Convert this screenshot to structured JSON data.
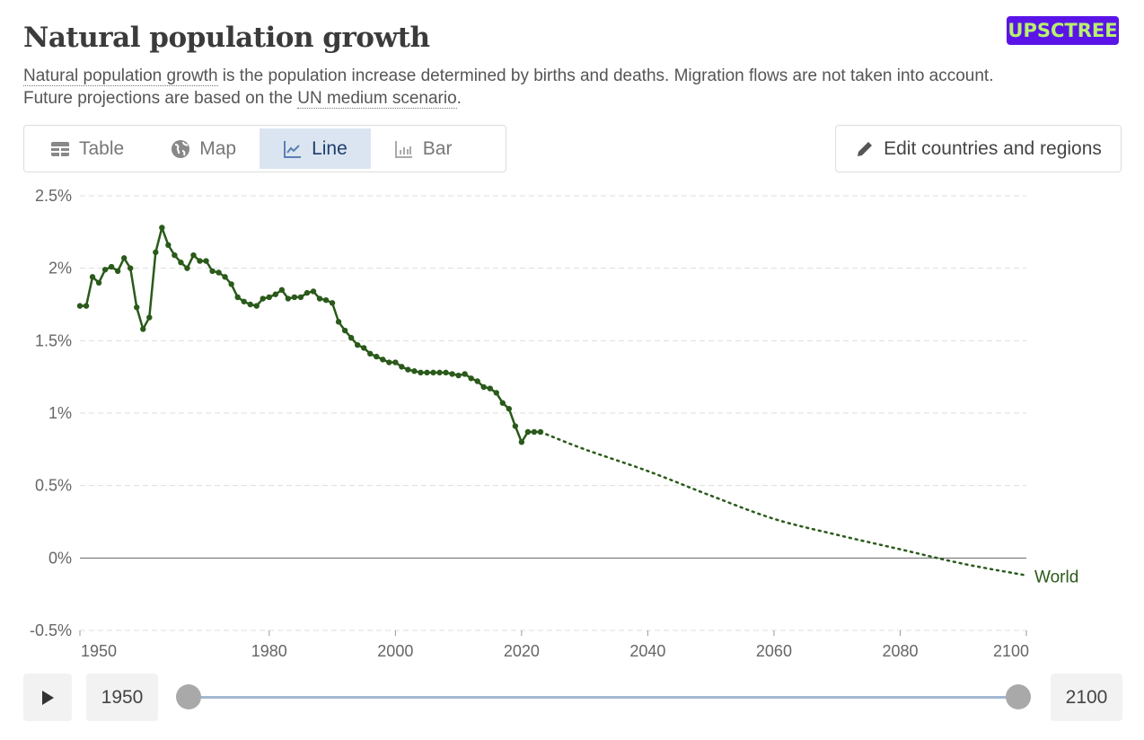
{
  "header": {
    "title": "Natural population growth",
    "subtitle_link1": "Natural population growth",
    "subtitle_mid": " is the population increase determined by births and deaths. Migration flows are not taken into account. Future projections are based on the ",
    "subtitle_link2": "UN medium scenario",
    "subtitle_end": ".",
    "logo": "UPSCTREE"
  },
  "tabs": [
    {
      "label": "Table",
      "icon": "table-icon"
    },
    {
      "label": "Map",
      "icon": "globe-icon"
    },
    {
      "label": "Line",
      "icon": "line-chart-icon",
      "active": true
    },
    {
      "label": "Bar",
      "icon": "bar-chart-icon"
    }
  ],
  "edit_button": {
    "label": "Edit countries and regions",
    "icon": "pencil-icon"
  },
  "timeline": {
    "start": "1950",
    "end": "2100"
  },
  "colors": {
    "series": "#2a5a1a",
    "accent": "#1d3d6e",
    "logo_bg": "#5a14e8",
    "logo_text": "#b8f06e"
  },
  "chart_data": {
    "type": "line",
    "title": "Natural population growth",
    "xlabel": "",
    "ylabel": "",
    "xlim": [
      1950,
      2100
    ],
    "ylim": [
      -0.5,
      2.5
    ],
    "x_ticks": [
      "1950",
      "1980",
      "2000",
      "2020",
      "2040",
      "2060",
      "2080",
      "2100"
    ],
    "y_ticks": [
      "2.5%",
      "2%",
      "1.5%",
      "1%",
      "0.5%",
      "0%",
      "-0.5%"
    ],
    "grid": true,
    "series": [
      {
        "name": "World",
        "label": "World",
        "historical": {
          "x": [
            1950,
            1951,
            1952,
            1953,
            1954,
            1955,
            1956,
            1957,
            1958,
            1959,
            1960,
            1961,
            1962,
            1963,
            1964,
            1965,
            1966,
            1967,
            1968,
            1969,
            1970,
            1971,
            1972,
            1973,
            1974,
            1975,
            1976,
            1977,
            1978,
            1979,
            1980,
            1981,
            1982,
            1983,
            1984,
            1985,
            1986,
            1987,
            1988,
            1989,
            1990,
            1991,
            1992,
            1993,
            1994,
            1995,
            1996,
            1997,
            1998,
            1999,
            2000,
            2001,
            2002,
            2003,
            2004,
            2005,
            2006,
            2007,
            2008,
            2009,
            2010,
            2011,
            2012,
            2013,
            2014,
            2015,
            2016,
            2017,
            2018,
            2019,
            2020,
            2021,
            2022,
            2023
          ],
          "y": [
            1.74,
            1.74,
            1.94,
            1.9,
            1.99,
            2.01,
            1.98,
            2.07,
            2.0,
            1.73,
            1.58,
            1.66,
            2.11,
            2.28,
            2.16,
            2.09,
            2.04,
            2.0,
            2.09,
            2.05,
            2.05,
            1.98,
            1.97,
            1.94,
            1.89,
            1.8,
            1.77,
            1.75,
            1.74,
            1.79,
            1.8,
            1.82,
            1.85,
            1.79,
            1.8,
            1.8,
            1.83,
            1.84,
            1.79,
            1.78,
            1.76,
            1.63,
            1.57,
            1.52,
            1.47,
            1.45,
            1.41,
            1.39,
            1.37,
            1.35,
            1.35,
            1.32,
            1.3,
            1.29,
            1.28,
            1.28,
            1.28,
            1.28,
            1.28,
            1.27,
            1.26,
            1.27,
            1.24,
            1.22,
            1.18,
            1.17,
            1.14,
            1.07,
            1.03,
            0.91,
            0.8,
            0.87,
            0.87,
            0.87
          ]
        },
        "projection": {
          "x": [
            2023,
            2030,
            2040,
            2050,
            2060,
            2070,
            2080,
            2090,
            2100
          ],
          "y": [
            0.87,
            0.75,
            0.6,
            0.43,
            0.27,
            0.16,
            0.06,
            -0.04,
            -0.12
          ]
        }
      }
    ]
  }
}
